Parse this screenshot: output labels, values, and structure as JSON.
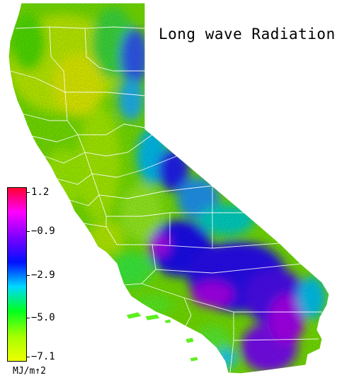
{
  "title": "Long wave Radiation",
  "legend": {
    "units": "MJ/m↑2",
    "ticks": [
      "1.2",
      "−0.9",
      "−2.9",
      "−5.0",
      "−7.1"
    ],
    "max": 1.2,
    "min": -7.1,
    "colors": [
      "#ff0030",
      "#ff00ff",
      "#7a00ff",
      "#0010ff",
      "#00d8ff",
      "#00ff20",
      "#a6ff00",
      "#eeff00"
    ]
  },
  "region": "California"
}
